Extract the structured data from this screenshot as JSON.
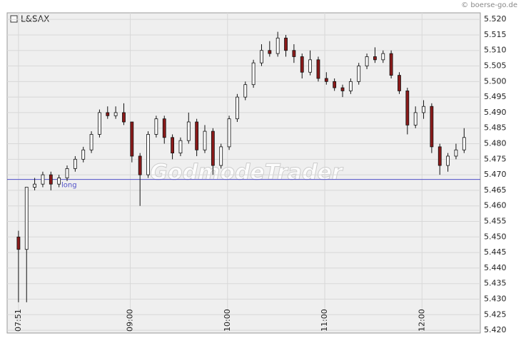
{
  "chart_data": {
    "type": "candlestick",
    "series_name": "L&SAX",
    "source": "© boerse-go.de",
    "watermark": "GodmodeTrader",
    "x": [
      "07:51",
      "07:56",
      "08:01",
      "08:06",
      "08:11",
      "08:16",
      "08:21",
      "08:26",
      "08:31",
      "08:36",
      "08:41",
      "08:46",
      "08:51",
      "08:56",
      "09:01",
      "09:06",
      "09:11",
      "09:16",
      "09:21",
      "09:26",
      "09:31",
      "09:36",
      "09:41",
      "09:46",
      "09:51",
      "09:56",
      "10:01",
      "10:06",
      "10:11",
      "10:16",
      "10:21",
      "10:26",
      "10:31",
      "10:36",
      "10:41",
      "10:46",
      "10:51",
      "10:56",
      "11:01",
      "11:06",
      "11:11",
      "11:16",
      "11:21",
      "11:26",
      "11:31",
      "11:36",
      "11:41",
      "11:46",
      "11:51",
      "11:56",
      "12:01",
      "12:06",
      "12:11",
      "12:16",
      "12:21",
      "12:26"
    ],
    "open": [
      5.45,
      5.446,
      5.466,
      5.467,
      5.47,
      5.467,
      5.469,
      5.472,
      5.475,
      5.478,
      5.483,
      5.49,
      5.489,
      5.49,
      5.487,
      5.476,
      5.47,
      5.483,
      5.488,
      5.482,
      5.477,
      5.481,
      5.487,
      5.478,
      5.484,
      5.473,
      5.479,
      5.488,
      5.495,
      5.499,
      5.506,
      5.51,
      5.509,
      5.514,
      5.51,
      5.508,
      5.503,
      5.507,
      5.501,
      5.5,
      5.498,
      5.497,
      5.5,
      5.505,
      5.508,
      5.507,
      5.509,
      5.502,
      5.497,
      5.486,
      5.49,
      5.492,
      5.479,
      5.473,
      5.476,
      5.478
    ],
    "high": [
      5.452,
      5.466,
      5.469,
      5.471,
      5.471,
      5.47,
      5.473,
      5.476,
      5.479,
      5.484,
      5.491,
      5.492,
      5.492,
      5.493,
      5.487,
      5.477,
      5.484,
      5.489,
      5.489,
      5.483,
      5.482,
      5.49,
      5.488,
      5.486,
      5.485,
      5.48,
      5.489,
      5.496,
      5.5,
      5.507,
      5.512,
      5.513,
      5.516,
      5.515,
      5.512,
      5.509,
      5.51,
      5.508,
      5.503,
      5.501,
      5.499,
      5.501,
      5.506,
      5.509,
      5.511,
      5.51,
      5.51,
      5.503,
      5.498,
      5.492,
      5.494,
      5.493,
      5.48,
      5.477,
      5.48,
      5.485
    ],
    "low": [
      5.429,
      5.429,
      5.465,
      5.466,
      5.465,
      5.466,
      5.468,
      5.471,
      5.474,
      5.477,
      5.482,
      5.488,
      5.488,
      5.486,
      5.474,
      5.46,
      5.469,
      5.482,
      5.48,
      5.475,
      5.476,
      5.48,
      5.476,
      5.477,
      5.47,
      5.472,
      5.478,
      5.487,
      5.494,
      5.498,
      5.505,
      5.508,
      5.508,
      5.508,
      5.506,
      5.501,
      5.502,
      5.5,
      5.499,
      5.497,
      5.495,
      5.496,
      5.499,
      5.504,
      5.506,
      5.506,
      5.501,
      5.496,
      5.483,
      5.485,
      5.488,
      5.477,
      5.47,
      5.471,
      5.475,
      5.477
    ],
    "close": [
      5.446,
      5.466,
      5.467,
      5.47,
      5.467,
      5.469,
      5.472,
      5.475,
      5.478,
      5.483,
      5.49,
      5.489,
      5.49,
      5.487,
      5.476,
      5.47,
      5.483,
      5.488,
      5.482,
      5.477,
      5.481,
      5.487,
      5.478,
      5.484,
      5.473,
      5.479,
      5.488,
      5.495,
      5.499,
      5.506,
      5.51,
      5.509,
      5.514,
      5.51,
      5.508,
      5.503,
      5.507,
      5.501,
      5.5,
      5.498,
      5.497,
      5.5,
      5.505,
      5.508,
      5.507,
      5.509,
      5.502,
      5.497,
      5.486,
      5.49,
      5.492,
      5.479,
      5.473,
      5.476,
      5.478,
      5.482
    ],
    "up_color": "#ffffff",
    "down_color": "#8b1a1a",
    "xlim": [
      "07:44",
      "12:36"
    ],
    "xticks": [
      "07:51",
      "09:00",
      "10:00",
      "11:00",
      "12:00"
    ],
    "ylim": [
      5.4191,
      5.5221
    ],
    "yticks": [
      {
        "value": 5.42,
        "label": "5.420"
      },
      5.425,
      {
        "value": 5.43,
        "label": "5.430"
      },
      5.435,
      {
        "value": 5.44,
        "label": "5.440"
      },
      5.445,
      {
        "value": 5.45,
        "label": "5.450"
      },
      5.455,
      {
        "value": 5.46,
        "label": "5.460"
      },
      5.465,
      {
        "value": 5.47,
        "label": "5.470"
      },
      5.475,
      {
        "value": 5.48,
        "label": "5.480"
      },
      5.485,
      {
        "value": 5.49,
        "label": "5.490"
      },
      5.495,
      {
        "value": 5.5,
        "label": "5.500"
      },
      5.505,
      {
        "value": 5.51,
        "label": "5.510"
      },
      5.515,
      {
        "value": 5.52,
        "label": "5.520"
      }
    ],
    "grid": true,
    "reference_line": {
      "value": 5.4685,
      "label": "long",
      "color": "#5050c8"
    }
  }
}
